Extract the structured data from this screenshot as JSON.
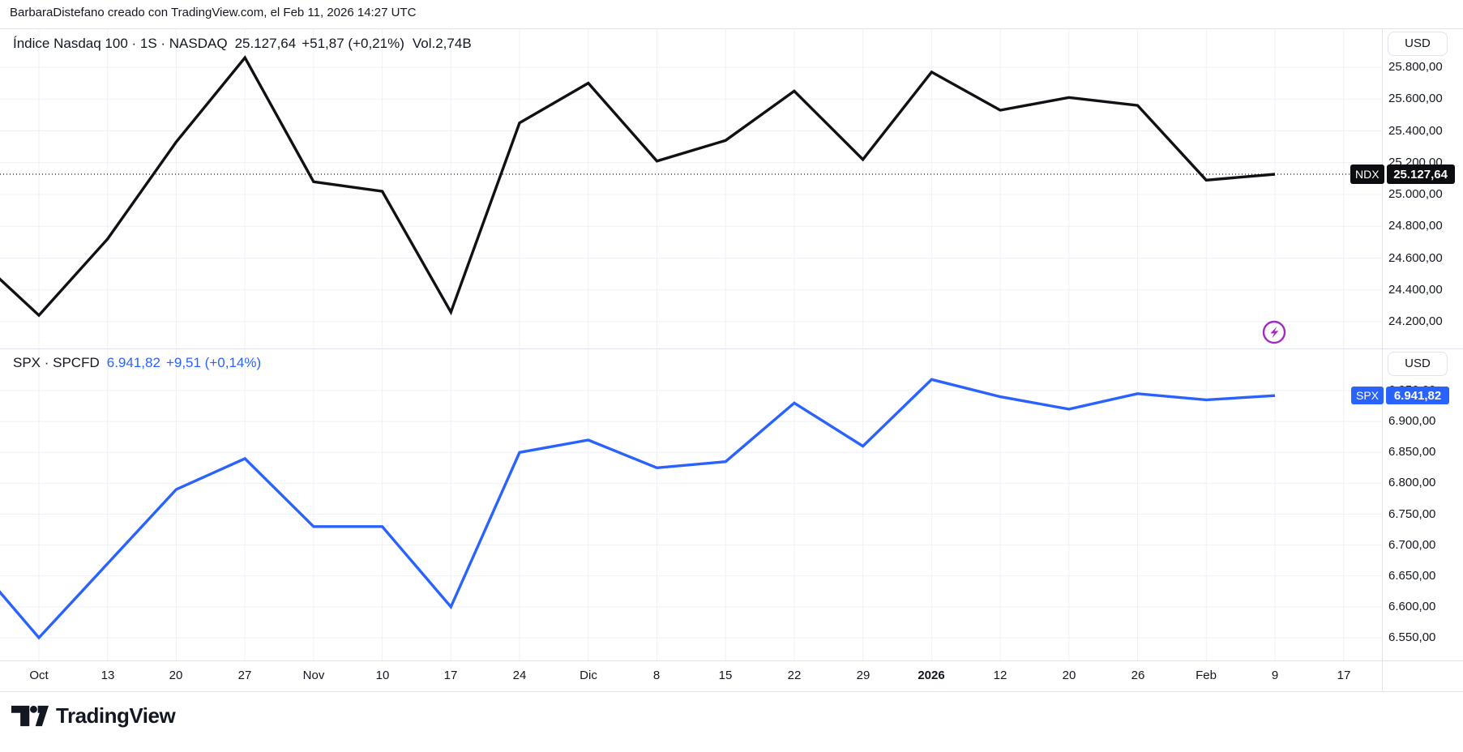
{
  "header": {
    "attribution": "BarbaraDistefano creado con TradingView.com, el Feb 11, 2026 14:27 UTC"
  },
  "panes": [
    {
      "legend": {
        "symbol_text": "Índice Nasdaq 100 · 1S · NASDAQ",
        "price": "25.127,64",
        "change": "+51,87 (+0,21%)",
        "volume": "Vol.2,74B"
      },
      "currency_button": "USD",
      "price_tag": {
        "symbol": "NDX",
        "value": "25.127,64"
      },
      "y_ticks": [
        {
          "value": 25800,
          "label": "25.800,00"
        },
        {
          "value": 25600,
          "label": "25.600,00"
        },
        {
          "value": 25400,
          "label": "25.400,00"
        },
        {
          "value": 25200,
          "label": "25.200,00"
        },
        {
          "value": 25000,
          "label": "25.000,00"
        },
        {
          "value": 24800,
          "label": "24.800,00"
        },
        {
          "value": 24600,
          "label": "24.600,00"
        },
        {
          "value": 24400,
          "label": "24.400,00"
        },
        {
          "value": 24200,
          "label": "24.200,00"
        }
      ]
    },
    {
      "legend": {
        "symbol_text": "SPX · SPCFD",
        "price": "6.941,82",
        "change": "+9,51 (+0,14%)"
      },
      "currency_button": "USD",
      "price_tag": {
        "symbol": "SPX",
        "value": "6.941,82"
      },
      "y_ticks": [
        {
          "value": 6950,
          "label": "6.950,00"
        },
        {
          "value": 6900,
          "label": "6.900,00"
        },
        {
          "value": 6850,
          "label": "6.850,00"
        },
        {
          "value": 6800,
          "label": "6.800,00"
        },
        {
          "value": 6750,
          "label": "6.750,00"
        },
        {
          "value": 6700,
          "label": "6.700,00"
        },
        {
          "value": 6650,
          "label": "6.650,00"
        },
        {
          "value": 6600,
          "label": "6.600,00"
        },
        {
          "value": 6550,
          "label": "6.550,00"
        }
      ]
    }
  ],
  "x_axis": {
    "labels": [
      "Oct",
      "13",
      "20",
      "27",
      "Nov",
      "10",
      "17",
      "24",
      "Dic",
      "8",
      "15",
      "22",
      "29",
      "2026",
      "12",
      "20",
      "26",
      "Feb",
      "9",
      "17"
    ],
    "bold_label": "2026"
  },
  "icons": {
    "lightning": "flash-sticker",
    "lightning_color": "#a12bbf"
  },
  "colors": {
    "ndx_line": "#101114",
    "spx_line": "#2962FF",
    "grid": "#eef1f7",
    "separator": "#e0e3eb",
    "text": "#131722",
    "ndx_tag_bg": "#0c0d10",
    "spx_tag_bg": "#2962FF"
  },
  "footer": {
    "logo_text": "TradingView"
  },
  "chart_data": [
    {
      "type": "line",
      "title": "Índice Nasdaq 100 · 1S · NASDAQ",
      "currency": "USD",
      "categories": [
        "Oct",
        "13",
        "20",
        "27",
        "Nov",
        "10",
        "17",
        "24",
        "Dic",
        "8",
        "15",
        "22",
        "29",
        "2026",
        "12",
        "20",
        "26",
        "Feb",
        "9",
        "17"
      ],
      "lead_in_value": 24640,
      "series": [
        {
          "name": "NDX",
          "color": "#101114",
          "values": [
            24240,
            24720,
            25330,
            25860,
            25080,
            25020,
            24260,
            25450,
            25700,
            25210,
            25340,
            25650,
            25220,
            25770,
            25530,
            25610,
            25560,
            25090,
            25127.64
          ]
        }
      ],
      "last_price": 25127.64,
      "last_price_label": "25.127,64",
      "ylim": [
        24150,
        25900
      ],
      "grid": true,
      "legend_position": "top-left",
      "price_line": "dotted"
    },
    {
      "type": "line",
      "title": "SPX · SPCFD",
      "currency": "USD",
      "categories": [
        "Oct",
        "13",
        "20",
        "27",
        "Nov",
        "10",
        "17",
        "24",
        "Dic",
        "8",
        "15",
        "22",
        "29",
        "2026",
        "12",
        "20",
        "26",
        "Feb",
        "9",
        "17"
      ],
      "lead_in_value": 6680,
      "series": [
        {
          "name": "SPX",
          "color": "#2962FF",
          "values": [
            6550,
            6670,
            6790,
            6840,
            6730,
            6730,
            6600,
            6850,
            6870,
            6825,
            6835,
            6930,
            6860,
            6968,
            6940,
            6920,
            6945,
            6935,
            6941.82
          ]
        }
      ],
      "last_price": 6941.82,
      "last_price_label": "6.941,82",
      "ylim": [
        6500,
        7000
      ],
      "grid": true,
      "legend_position": "top-left",
      "price_line": "none"
    }
  ]
}
